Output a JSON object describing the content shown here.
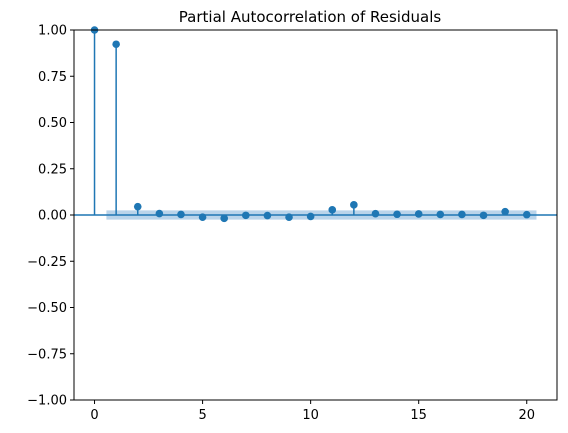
{
  "chart_data": {
    "type": "stem",
    "title": "Partial Autocorrelation of Residuals",
    "xlabel": "",
    "ylabel": "",
    "xlim": [
      -0.95,
      21.4
    ],
    "ylim": [
      -1.0,
      1.0
    ],
    "x_ticks": [
      0,
      5,
      10,
      15,
      20
    ],
    "y_ticks": [
      -1.0,
      -0.75,
      -0.5,
      -0.25,
      0.0,
      0.25,
      0.5,
      0.75,
      1.0
    ],
    "y_tick_labels": [
      "−1.00",
      "−0.75",
      "−0.50",
      "−0.25",
      "0.00",
      "0.25",
      "0.50",
      "0.75",
      "1.00"
    ],
    "x_tick_labels": [
      "0",
      "5",
      "10",
      "15",
      "20"
    ],
    "lags": [
      0,
      1,
      2,
      3,
      4,
      5,
      6,
      7,
      8,
      9,
      10,
      11,
      12,
      13,
      14,
      15,
      16,
      17,
      18,
      19,
      20
    ],
    "values": [
      1.0,
      0.923,
      0.045,
      0.008,
      0.003,
      -0.012,
      -0.018,
      -0.002,
      -0.003,
      -0.012,
      -0.008,
      0.028,
      0.055,
      0.007,
      0.004,
      0.006,
      0.003,
      0.003,
      -0.002,
      0.018,
      0.002
    ],
    "confidence_band": {
      "x_start": 0.55,
      "x_end": 20.45,
      "lower": -0.025,
      "upper": 0.025
    },
    "grid": false,
    "colors": {
      "stem": "#1f77b4",
      "band": "#aecce6",
      "axis": "#000000"
    }
  }
}
